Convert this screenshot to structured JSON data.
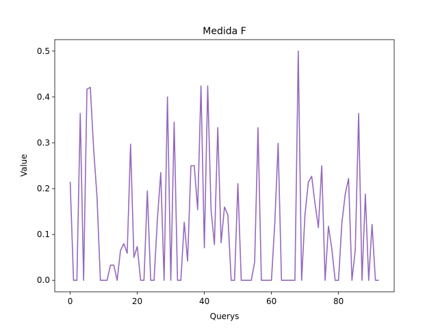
{
  "chart_data": {
    "type": "line",
    "title": "Medida F",
    "xlabel": "Querys",
    "ylabel": "Value",
    "xlim": [
      -4.6,
      96.6
    ],
    "ylim": [
      -0.025,
      0.525
    ],
    "xticks": [
      0,
      20,
      40,
      60,
      80
    ],
    "xtick_labels": [
      "0",
      "20",
      "40",
      "60",
      "80"
    ],
    "yticks": [
      0.0,
      0.1,
      0.2,
      0.3,
      0.4,
      0.5
    ],
    "ytick_labels": [
      "0.0",
      "0.1",
      "0.2",
      "0.3",
      "0.4",
      "0.5"
    ],
    "grid": false,
    "legend": "none",
    "colors": {
      "line": "#9467bd",
      "axes": "#000000",
      "background": "#ffffff"
    },
    "series": [
      {
        "x": [
          0,
          1,
          2,
          3,
          4,
          5,
          6,
          7,
          8,
          9,
          10,
          11,
          12,
          13,
          14,
          15,
          16,
          17,
          18,
          19,
          20,
          21,
          22,
          23,
          24,
          25,
          26,
          27,
          28,
          29,
          30,
          31,
          32,
          33,
          34,
          35,
          36,
          37,
          38,
          39,
          40,
          41,
          42,
          43,
          44,
          45,
          46,
          47,
          48,
          49,
          50,
          51,
          52,
          53,
          54,
          55,
          56,
          57,
          58,
          59,
          60,
          61,
          62,
          63,
          64,
          65,
          66,
          67,
          68,
          69,
          70,
          71,
          72,
          73,
          74,
          75,
          76,
          77,
          78,
          79,
          80,
          81,
          82,
          83,
          84,
          85,
          86,
          87,
          88,
          89,
          90,
          91,
          92
        ],
        "values": [
          0.215,
          0,
          0,
          0.364,
          0,
          0.417,
          0.421,
          0.286,
          0.182,
          0,
          0,
          0,
          0.033,
          0.033,
          0,
          0.065,
          0.08,
          0.059,
          0.297,
          0.05,
          0.074,
          0,
          0,
          0.195,
          0,
          0,
          0.133,
          0.235,
          0,
          0.4,
          0,
          0.345,
          0,
          0,
          0.127,
          0.042,
          0.25,
          0.25,
          0.154,
          0.424,
          0.071,
          0.424,
          0.154,
          0.078,
          0.333,
          0.082,
          0.16,
          0.143,
          0,
          0,
          0.211,
          0,
          0,
          0,
          0,
          0.04,
          0.333,
          0,
          0,
          0,
          0,
          0.125,
          0.299,
          0,
          0,
          0,
          0,
          0,
          0.5,
          0,
          0.143,
          0.214,
          0.227,
          0.167,
          0.115,
          0.25,
          0,
          0.118,
          0.069,
          0,
          0,
          0.125,
          0.188,
          0.222,
          0,
          0.067,
          0.364,
          0,
          0.188,
          0,
          0.122,
          0,
          0
        ]
      }
    ]
  }
}
